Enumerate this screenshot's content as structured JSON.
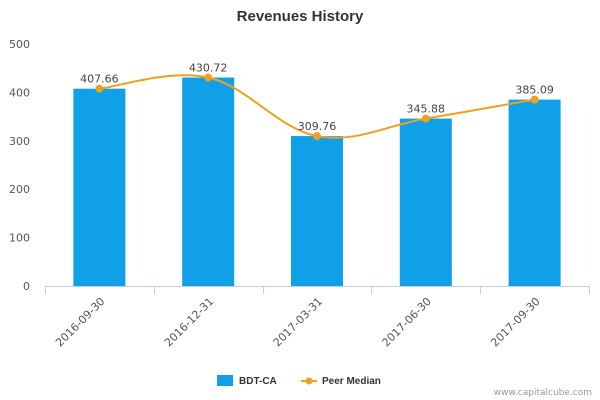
{
  "chart_data": {
    "type": "bar",
    "title": "Revenues History",
    "categories": [
      "2016-09-30",
      "2016-12-31",
      "2017-03-31",
      "2017-06-30",
      "2017-09-30"
    ],
    "ylim": [
      0,
      500
    ],
    "yticks": [
      0,
      100,
      200,
      300,
      400,
      500
    ],
    "grid": false,
    "legend_position": "bottom-center",
    "series": [
      {
        "name": "BDT-CA",
        "type": "bar",
        "color": "#0fa0e8",
        "values": [
          407.66,
          430.72,
          309.76,
          345.88,
          385.09
        ]
      },
      {
        "name": "Peer Median",
        "type": "line",
        "color": "#f0a020",
        "values": [
          407.66,
          430.72,
          309.76,
          345.88,
          385.09
        ]
      }
    ],
    "data_labels": [
      "407.66",
      "430.72",
      "309.76",
      "345.88",
      "385.09"
    ]
  },
  "credit": "www.capitalcube.com"
}
